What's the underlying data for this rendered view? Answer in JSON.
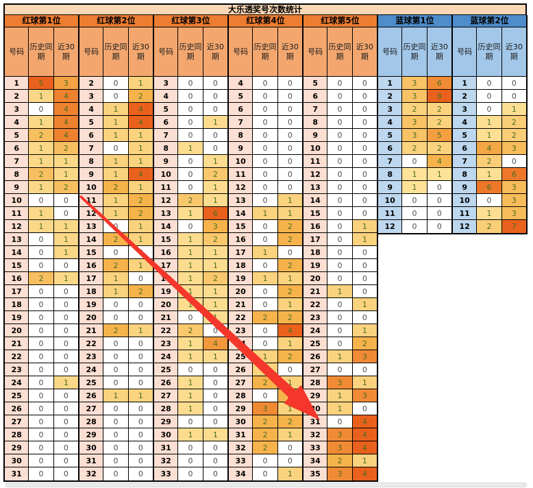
{
  "title": "大乐透奖号次数统计",
  "column_headers": [
    "号码",
    "历史同期",
    "近30期"
  ],
  "colors": {
    "red_group_header": "#ed7d31",
    "red_column_header": "#f3a76f",
    "red_number_cell": "#fbdfd2",
    "blue_group_header": "#4e8ccb",
    "blue_column_header": "#a2c7e8",
    "blue_number_cell": "#bdd7ee",
    "title_bar": "#fad7b6",
    "heat_low": "#fff1b0",
    "heat_mid": "#f6b34c",
    "heat_high": "#e9611c",
    "value_positive_text": "#4a6c20",
    "value_zero_text": "#4d4d4d",
    "arrow": "#f4362b"
  },
  "groups": [
    {
      "label": "红球第1位",
      "type": "red",
      "rows": [
        [
          1,
          5,
          3
        ],
        [
          2,
          1,
          4
        ],
        [
          3,
          0,
          4
        ],
        [
          4,
          1,
          4
        ],
        [
          5,
          2,
          4
        ],
        [
          6,
          1,
          2
        ],
        [
          7,
          1,
          1
        ],
        [
          8,
          2,
          1
        ],
        [
          9,
          1,
          2
        ],
        [
          10,
          0,
          0
        ],
        [
          11,
          1,
          0
        ],
        [
          12,
          1,
          1
        ],
        [
          13,
          0,
          1
        ],
        [
          14,
          0,
          1
        ],
        [
          15,
          0,
          0
        ],
        [
          16,
          2,
          1
        ],
        [
          17,
          0,
          0
        ],
        [
          18,
          0,
          0
        ],
        [
          19,
          0,
          0
        ],
        [
          20,
          0,
          0
        ],
        [
          21,
          0,
          0
        ],
        [
          22,
          0,
          0
        ],
        [
          23,
          0,
          0
        ],
        [
          24,
          0,
          1
        ],
        [
          25,
          0,
          0
        ],
        [
          26,
          0,
          0
        ],
        [
          27,
          0,
          0
        ],
        [
          28,
          0,
          0
        ],
        [
          29,
          0,
          0
        ],
        [
          30,
          0,
          0
        ],
        [
          31,
          0,
          0
        ]
      ]
    },
    {
      "label": "红球第2位",
      "type": "red",
      "rows": [
        [
          2,
          0,
          1
        ],
        [
          3,
          0,
          2
        ],
        [
          4,
          1,
          4
        ],
        [
          5,
          1,
          4
        ],
        [
          6,
          1,
          1
        ],
        [
          7,
          0,
          1
        ],
        [
          8,
          1,
          1
        ],
        [
          9,
          1,
          4
        ],
        [
          10,
          2,
          1
        ],
        [
          11,
          1,
          2
        ],
        [
          12,
          1,
          2
        ],
        [
          13,
          0,
          1
        ],
        [
          14,
          2,
          1
        ],
        [
          15,
          0,
          0
        ],
        [
          16,
          2,
          1
        ],
        [
          17,
          1,
          0
        ],
        [
          18,
          1,
          2
        ],
        [
          19,
          0,
          0
        ],
        [
          20,
          0,
          0
        ],
        [
          21,
          2,
          1
        ],
        [
          22,
          0,
          0
        ],
        [
          23,
          0,
          0
        ],
        [
          24,
          0,
          0
        ],
        [
          25,
          0,
          0
        ],
        [
          26,
          1,
          1
        ],
        [
          27,
          0,
          0
        ],
        [
          28,
          0,
          0
        ],
        [
          29,
          0,
          0
        ],
        [
          30,
          0,
          0
        ],
        [
          31,
          0,
          0
        ],
        [
          32,
          0,
          0
        ]
      ]
    },
    {
      "label": "红球第3位",
      "type": "red",
      "rows": [
        [
          3,
          0,
          0
        ],
        [
          4,
          0,
          0
        ],
        [
          5,
          0,
          0
        ],
        [
          6,
          0,
          1
        ],
        [
          7,
          0,
          0
        ],
        [
          8,
          1,
          0
        ],
        [
          9,
          0,
          1
        ],
        [
          10,
          0,
          2
        ],
        [
          11,
          0,
          1
        ],
        [
          12,
          2,
          1
        ],
        [
          13,
          1,
          6
        ],
        [
          14,
          0,
          3
        ],
        [
          15,
          1,
          2
        ],
        [
          16,
          1,
          1
        ],
        [
          17,
          1,
          1
        ],
        [
          18,
          1,
          2
        ],
        [
          19,
          1,
          1
        ],
        [
          20,
          1,
          1
        ],
        [
          21,
          0,
          1
        ],
        [
          22,
          2,
          0
        ],
        [
          23,
          1,
          4
        ],
        [
          24,
          1,
          1
        ],
        [
          25,
          0,
          0
        ],
        [
          26,
          1,
          0
        ],
        [
          27,
          1,
          0
        ],
        [
          28,
          1,
          0
        ],
        [
          29,
          0,
          0
        ],
        [
          30,
          1,
          1
        ],
        [
          31,
          0,
          0
        ],
        [
          32,
          0,
          0
        ],
        [
          33,
          0,
          0
        ]
      ]
    },
    {
      "label": "红球第4位",
      "type": "red",
      "rows": [
        [
          4,
          0,
          0
        ],
        [
          5,
          0,
          0
        ],
        [
          6,
          0,
          0
        ],
        [
          7,
          0,
          0
        ],
        [
          8,
          0,
          0
        ],
        [
          9,
          0,
          0
        ],
        [
          10,
          0,
          0
        ],
        [
          11,
          0,
          0
        ],
        [
          12,
          0,
          0
        ],
        [
          13,
          0,
          1
        ],
        [
          14,
          1,
          1
        ],
        [
          15,
          0,
          2
        ],
        [
          16,
          0,
          2
        ],
        [
          17,
          1,
          0
        ],
        [
          18,
          0,
          2
        ],
        [
          19,
          1,
          1
        ],
        [
          20,
          0,
          2
        ],
        [
          21,
          0,
          1
        ],
        [
          22,
          2,
          2
        ],
        [
          23,
          0,
          4
        ],
        [
          24,
          0,
          1
        ],
        [
          25,
          1,
          2
        ],
        [
          26,
          1,
          0
        ],
        [
          27,
          2,
          1
        ],
        [
          28,
          0,
          2
        ],
        [
          29,
          3,
          1
        ],
        [
          30,
          2,
          2
        ],
        [
          31,
          2,
          1
        ],
        [
          32,
          2,
          0
        ],
        [
          33,
          0,
          0
        ],
        [
          34,
          0,
          1
        ]
      ]
    },
    {
      "label": "红球第5位",
      "type": "red",
      "rows": [
        [
          5,
          0,
          0
        ],
        [
          6,
          0,
          0
        ],
        [
          7,
          0,
          0
        ],
        [
          8,
          0,
          0
        ],
        [
          9,
          0,
          0
        ],
        [
          10,
          0,
          0
        ],
        [
          11,
          0,
          0
        ],
        [
          12,
          0,
          0
        ],
        [
          13,
          0,
          0
        ],
        [
          14,
          0,
          0
        ],
        [
          15,
          0,
          0
        ],
        [
          16,
          0,
          1
        ],
        [
          17,
          0,
          1
        ],
        [
          18,
          0,
          0
        ],
        [
          19,
          0,
          0
        ],
        [
          20,
          0,
          0
        ],
        [
          21,
          1,
          0
        ],
        [
          22,
          0,
          1
        ],
        [
          23,
          0,
          0
        ],
        [
          24,
          0,
          1
        ],
        [
          25,
          0,
          2
        ],
        [
          26,
          1,
          3
        ],
        [
          27,
          0,
          0
        ],
        [
          28,
          3,
          1
        ],
        [
          29,
          1,
          3
        ],
        [
          30,
          1,
          0
        ],
        [
          31,
          0,
          4
        ],
        [
          32,
          3,
          4
        ],
        [
          33,
          3,
          4
        ],
        [
          34,
          2,
          1
        ],
        [
          35,
          3,
          4
        ]
      ]
    },
    {
      "label": "蓝球第1位",
      "type": "blue",
      "rows": [
        [
          1,
          3,
          6
        ],
        [
          2,
          3,
          8
        ],
        [
          3,
          2,
          2
        ],
        [
          4,
          3,
          2
        ],
        [
          5,
          3,
          5
        ],
        [
          6,
          2,
          2
        ],
        [
          7,
          0,
          4
        ],
        [
          8,
          1,
          1
        ],
        [
          9,
          1,
          0
        ],
        [
          10,
          0,
          0
        ],
        [
          11,
          0,
          0
        ],
        [
          12,
          0,
          0
        ]
      ]
    },
    {
      "label": "蓝球第2位",
      "type": "blue",
      "rows": [
        [
          1,
          0,
          0
        ],
        [
          2,
          0,
          0
        ],
        [
          3,
          0,
          1
        ],
        [
          4,
          1,
          2
        ],
        [
          5,
          1,
          2
        ],
        [
          6,
          4,
          3
        ],
        [
          7,
          2,
          0
        ],
        [
          8,
          1,
          6
        ],
        [
          9,
          6,
          3
        ],
        [
          10,
          0,
          3
        ],
        [
          11,
          1,
          3
        ],
        [
          12,
          2,
          7
        ]
      ]
    }
  ],
  "annotation": {
    "shape": "red-arrow",
    "direction": "upper-left to lower-right"
  }
}
